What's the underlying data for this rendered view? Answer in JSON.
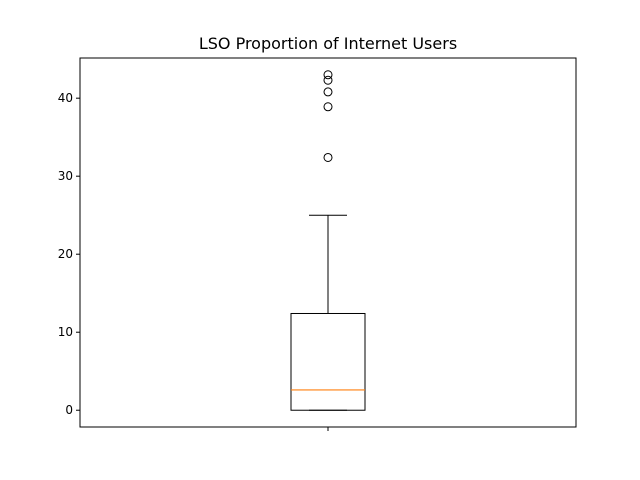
{
  "chart_data": {
    "type": "box",
    "title": "LSO Proportion of Internet Users",
    "xlabel": "",
    "ylabel": "",
    "ylim": [
      -2.15,
      45.15
    ],
    "yticks": [
      0,
      10,
      20,
      30,
      40
    ],
    "x_ticks": [
      ""
    ],
    "grid": false,
    "legend": "none",
    "boxes": [
      {
        "whisker_low": 0.0,
        "q1": 0.0,
        "median": 2.6,
        "q3": 12.4,
        "whisker_high": 25.0,
        "outliers": [
          32.4,
          38.9,
          40.8,
          42.3,
          43.0
        ]
      }
    ],
    "colors": {
      "box": "#000000",
      "median": "#ff7f0e",
      "background": "#ffffff"
    }
  }
}
